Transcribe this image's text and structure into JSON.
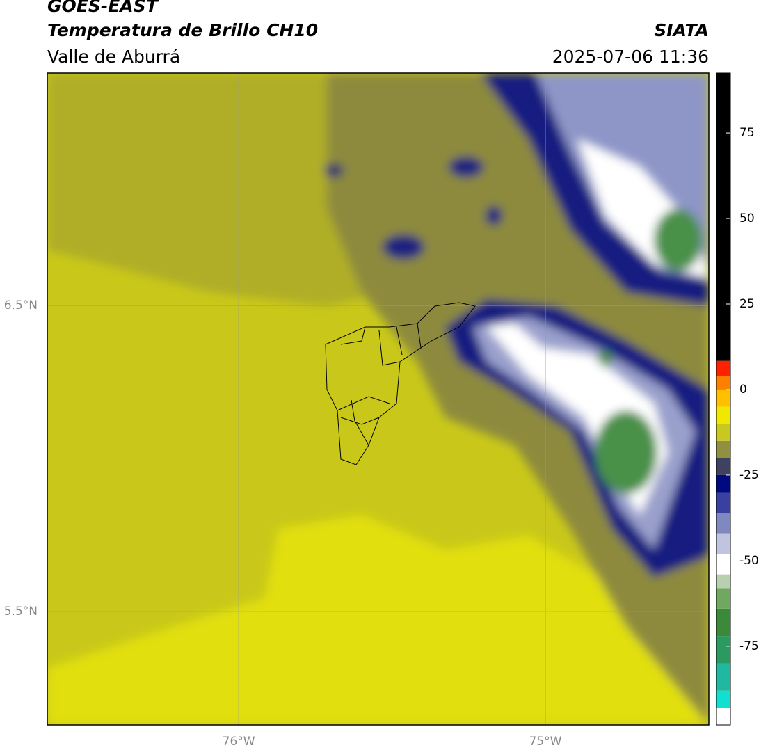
{
  "header": {
    "title": "GOES-EAST",
    "subtitle": "Temperatura de Brillo CH10",
    "region": "Valle de Aburrá",
    "source": "SIATA",
    "datetime": "2025-07-06 11:36"
  },
  "map": {
    "xlim": [
      -76.624,
      -74.467
    ],
    "ylim": [
      5.13,
      7.259
    ],
    "xticks": [
      {
        "value": -76,
        "label": "76°W"
      },
      {
        "value": -75,
        "label": "75°W"
      }
    ],
    "yticks": [
      {
        "value": 6.5,
        "label": "6.5°N"
      },
      {
        "value": 5.5,
        "label": "5.5°N"
      }
    ],
    "grid": true,
    "grid_color": "#9a9a9a"
  },
  "colorbar": {
    "lim": [
      -98,
      92.5
    ],
    "ticks": [
      75,
      50,
      25,
      0,
      -25,
      -50,
      -75
    ],
    "segments": [
      {
        "from": -98,
        "to": -93,
        "color": "#ffffff"
      },
      {
        "from": -93,
        "to": -88,
        "color": "#10e0d0"
      },
      {
        "from": -88,
        "to": -80,
        "color": "#20b8a0"
      },
      {
        "from": -80,
        "to": -72,
        "color": "#2a9a60"
      },
      {
        "from": -72,
        "to": -64,
        "color": "#3a8a3a"
      },
      {
        "from": -64,
        "to": -58,
        "color": "#70a860"
      },
      {
        "from": -58,
        "to": -54,
        "color": "#b8d0b0"
      },
      {
        "from": -54,
        "to": -48,
        "color": "#ffffff"
      },
      {
        "from": -48,
        "to": -42,
        "color": "#c0c4e0"
      },
      {
        "from": -42,
        "to": -36,
        "color": "#8088c0"
      },
      {
        "from": -36,
        "to": -30,
        "color": "#3a40a0"
      },
      {
        "from": -30,
        "to": -25,
        "color": "#000a80"
      },
      {
        "from": -25,
        "to": -20,
        "color": "#404060"
      },
      {
        "from": -20,
        "to": -15,
        "color": "#909040"
      },
      {
        "from": -15,
        "to": -10,
        "color": "#c8c820"
      },
      {
        "from": -10,
        "to": -5,
        "color": "#f0e800"
      },
      {
        "from": -5,
        "to": 0,
        "color": "#ffc000"
      },
      {
        "from": 0,
        "to": 4,
        "color": "#ff8000"
      },
      {
        "from": 4,
        "to": 8.4,
        "color": "#ff2000"
      },
      {
        "from": 8.4,
        "to": 92.5,
        "color": "#000000"
      }
    ]
  }
}
